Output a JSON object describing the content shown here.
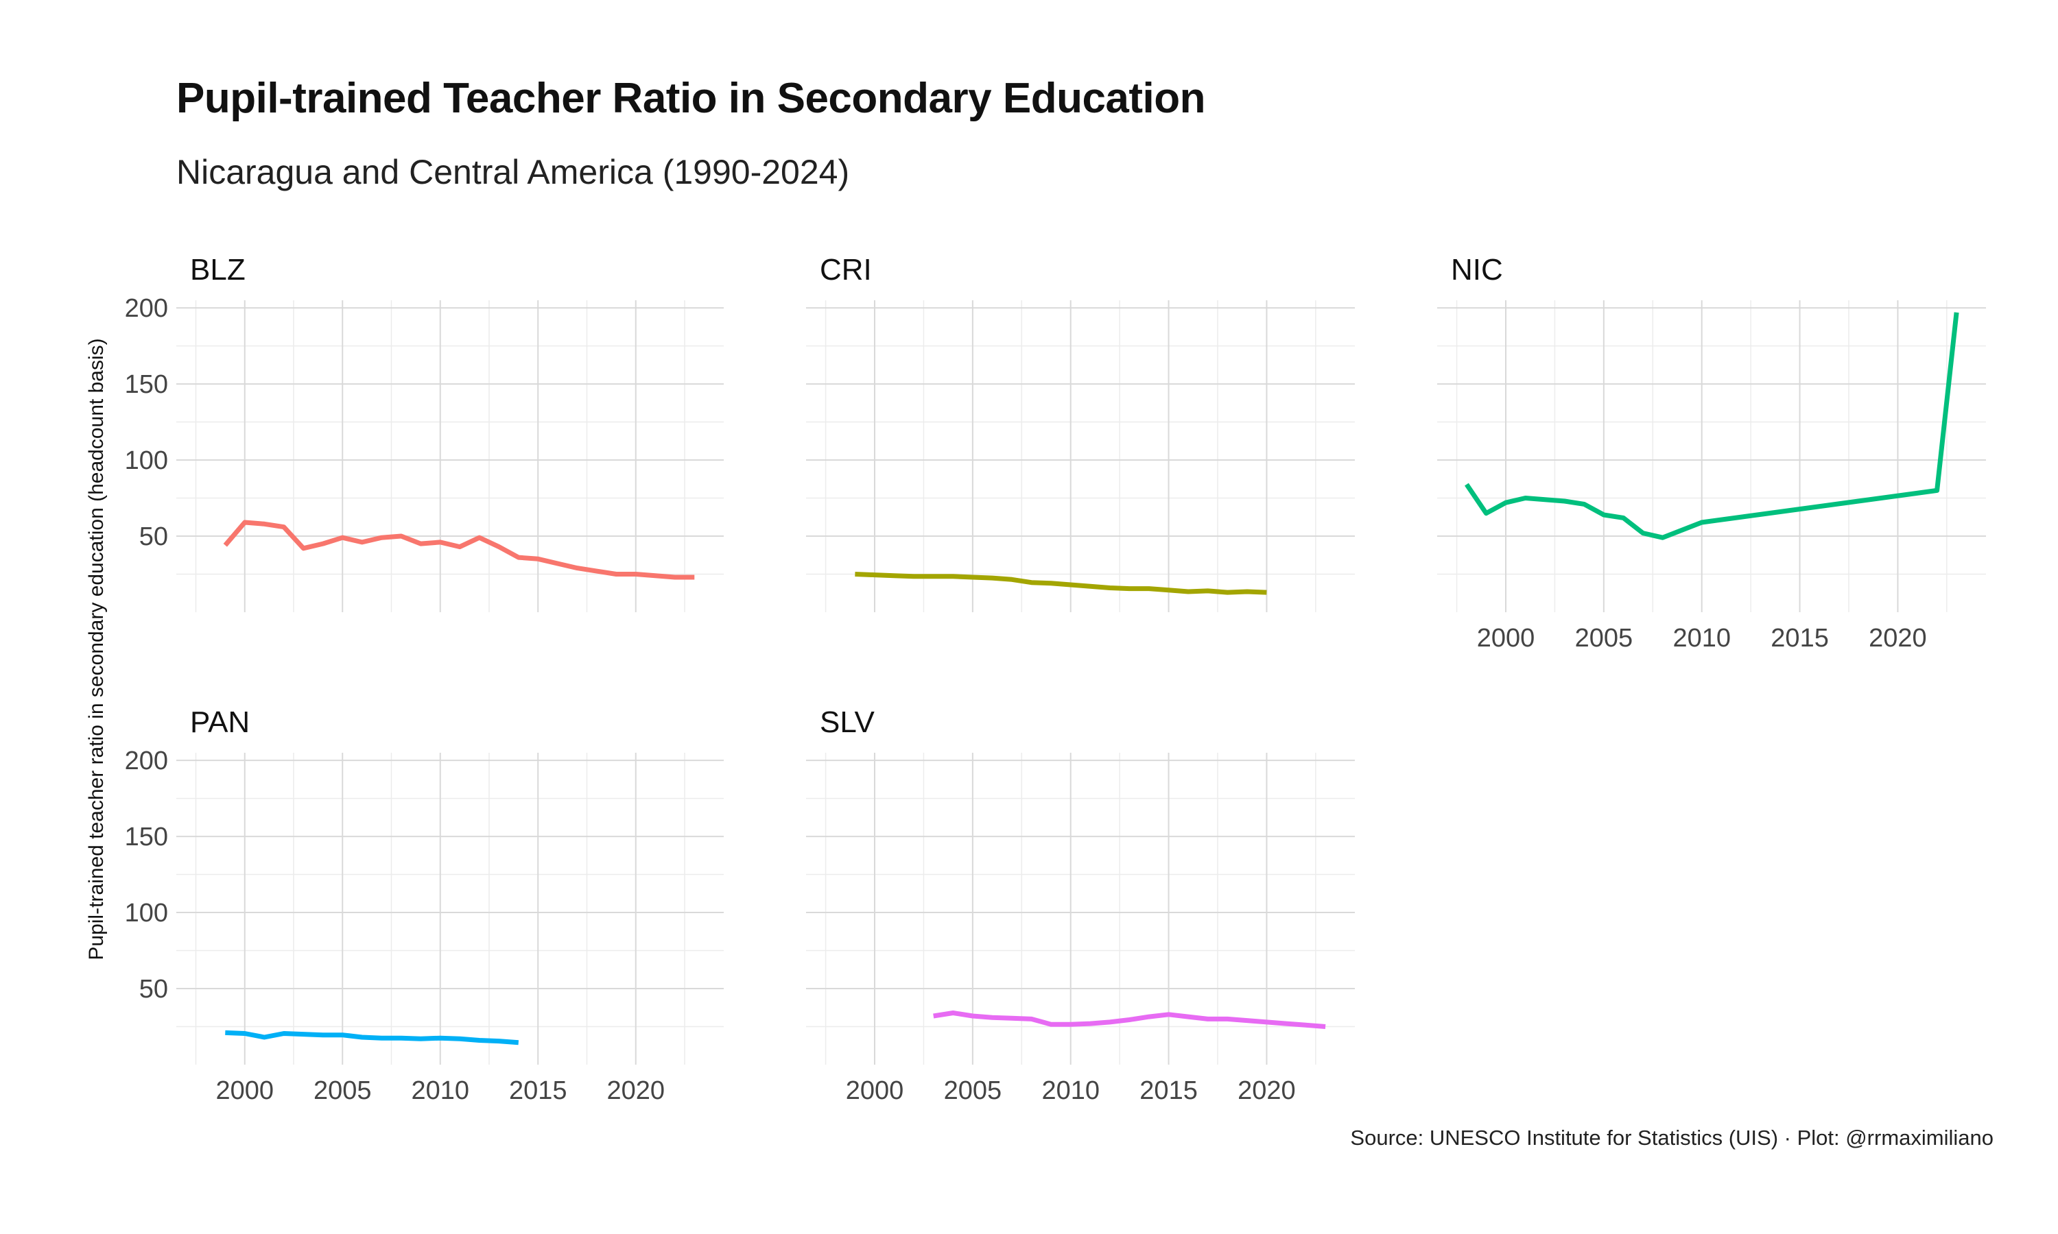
{
  "chart_data": {
    "type": "line",
    "title": "Pupil-trained Teacher Ratio in Secondary Education",
    "subtitle": "Nicaragua and Central America (1990-2024)",
    "caption": "Source: UNESCO Institute for Statistics (UIS) · Plot: @rrmaximiliano",
    "ylabel": "Pupil-trained teacher ratio in secondary education (headcount basis)",
    "xlabel": "",
    "y_ticks": [
      50,
      100,
      150,
      200
    ],
    "x_ticks": [
      2000,
      2005,
      2010,
      2015,
      2020
    ],
    "ylim": [
      0,
      205
    ],
    "xlim": [
      1996.5,
      2024.5
    ],
    "grid": true,
    "panels": [
      {
        "name": "BLZ",
        "color": "#F8766D",
        "x": [
          1999,
          2000,
          2001,
          2002,
          2003,
          2004,
          2005,
          2006,
          2007,
          2008,
          2009,
          2010,
          2011,
          2012,
          2013,
          2014,
          2015,
          2016,
          2017,
          2018,
          2019,
          2020,
          2021,
          2022,
          2023
        ],
        "y": [
          44,
          59,
          58,
          56,
          42,
          45,
          49,
          46,
          49,
          50,
          45,
          46,
          43,
          49,
          43,
          36,
          35,
          32,
          29,
          27,
          25,
          25,
          24,
          23,
          23
        ]
      },
      {
        "name": "CRI",
        "color": "#A3A500",
        "x": [
          1999,
          2000,
          2001,
          2002,
          2003,
          2004,
          2005,
          2006,
          2007,
          2008,
          2009,
          2010,
          2011,
          2012,
          2013,
          2014,
          2015,
          2016,
          2017,
          2018,
          2019,
          2020
        ],
        "y": [
          25,
          24.5,
          24,
          23.5,
          23.5,
          23.5,
          23,
          22.5,
          21.5,
          19.5,
          19,
          18,
          17,
          16,
          15.5,
          15.5,
          14.5,
          13.5,
          14,
          13,
          13.5,
          13
        ]
      },
      {
        "name": "NIC",
        "color": "#00BF7D",
        "x": [
          1998,
          1999,
          2000,
          2001,
          2002,
          2003,
          2004,
          2005,
          2006,
          2007,
          2008,
          2009,
          2010,
          2022,
          2023
        ],
        "y": [
          84,
          65,
          72,
          75,
          74,
          73,
          71,
          64,
          62,
          52,
          49,
          54,
          59,
          80,
          197
        ]
      },
      {
        "name": "PAN",
        "color": "#00B0F6",
        "x": [
          1999,
          2000,
          2001,
          2002,
          2003,
          2004,
          2005,
          2006,
          2007,
          2008,
          2009,
          2010,
          2011,
          2012,
          2013,
          2014
        ],
        "y": [
          21,
          20.5,
          18,
          20.5,
          20,
          19.5,
          19.5,
          18,
          17.5,
          17.5,
          17,
          17.5,
          17,
          16,
          15.5,
          14.5
        ]
      },
      {
        "name": "SLV",
        "color": "#E76BF3",
        "x": [
          2003,
          2004,
          2005,
          2006,
          2007,
          2008,
          2009,
          2010,
          2011,
          2012,
          2013,
          2014,
          2015,
          2016,
          2017,
          2018,
          2019,
          2020,
          2021,
          2022,
          2023
        ],
        "y": [
          32,
          34,
          32,
          31,
          30.5,
          30,
          26.5,
          26.5,
          27,
          28,
          29.5,
          31.5,
          33,
          31.5,
          30,
          30,
          29,
          28,
          27,
          26,
          25
        ]
      }
    ]
  }
}
